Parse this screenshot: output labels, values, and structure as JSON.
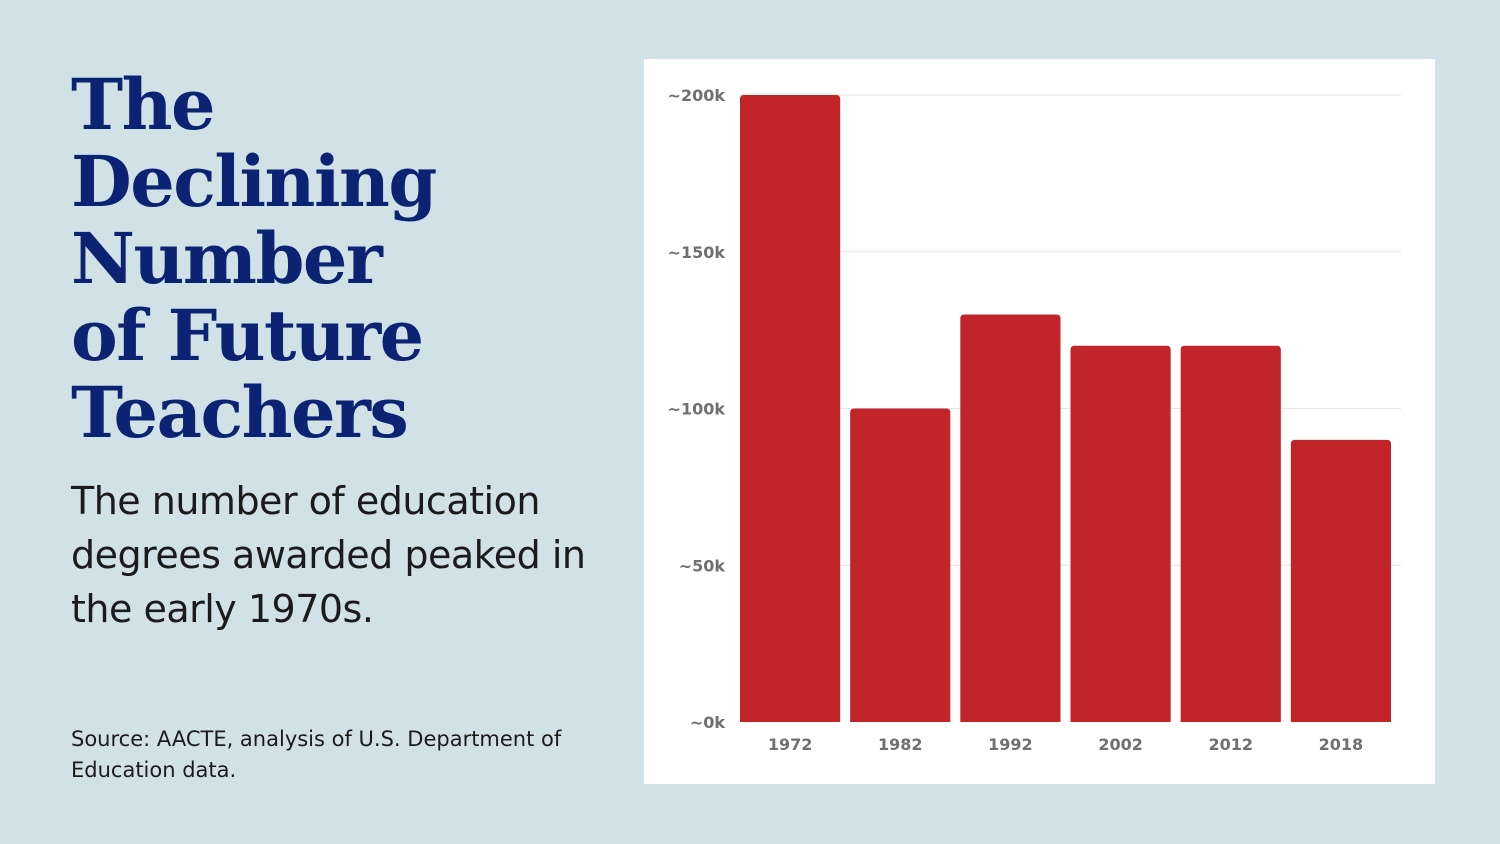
{
  "title_lines": [
    "The",
    "Declining",
    "Number",
    "of Future",
    "Teachers"
  ],
  "subtitle": "The number of education degrees awarded peaked in the early 1970s.",
  "source": "Source: AACTE, analysis of U.S. Department of Education data.",
  "colors": {
    "background": "#d0e2e6",
    "title": "#0c2272",
    "bar": "#c12429"
  },
  "chart_data": {
    "type": "bar",
    "categories": [
      "1972",
      "1982",
      "1992",
      "2002",
      "2012",
      "2018"
    ],
    "values": [
      200000,
      100000,
      130000,
      120000,
      120000,
      90000
    ],
    "ylim": [
      0,
      200000
    ],
    "yticks": [
      0,
      50000,
      100000,
      150000,
      200000
    ],
    "ytick_labels": [
      "~0k",
      "~50k",
      "~100k",
      "~150k",
      "~200k"
    ],
    "xlabel": "",
    "ylabel": "",
    "grid": true,
    "legend": "none"
  }
}
